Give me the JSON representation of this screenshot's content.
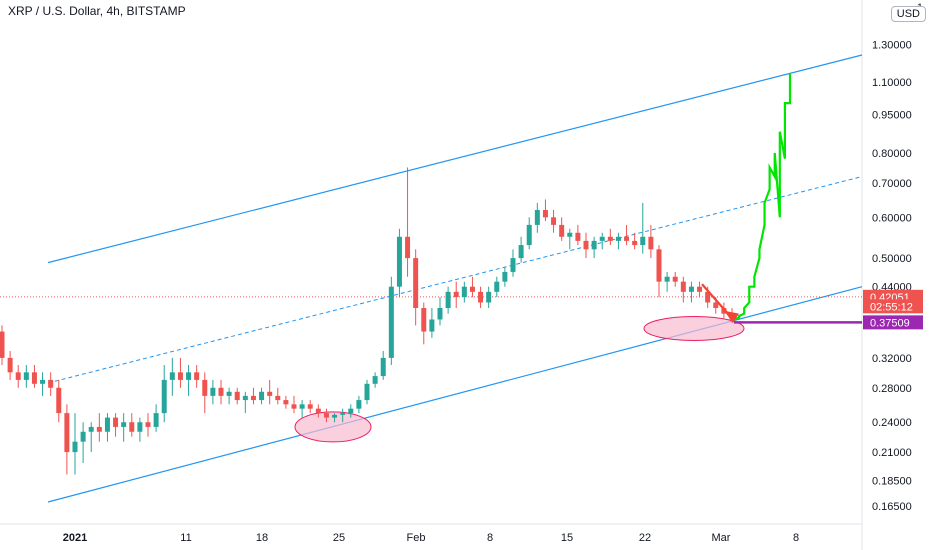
{
  "header": {
    "title": "XRP / U.S. Dollar, 4h, BITSTAMP",
    "currency_button": "USD",
    "scale_label": "1."
  },
  "chart_data": {
    "type": "candlestick",
    "title": "XRP / U.S. Dollar, 4h, BITSTAMP",
    "y_scale": "log",
    "ylim": [
      0.155,
      1.45
    ],
    "y_ticks": [
      {
        "label": "1.30000",
        "value": 1.3
      },
      {
        "label": "1.10000",
        "value": 1.1
      },
      {
        "label": "0.95000",
        "value": 0.95
      },
      {
        "label": "0.80000",
        "value": 0.8
      },
      {
        "label": "0.70000",
        "value": 0.7
      },
      {
        "label": "0.60000",
        "value": 0.6
      },
      {
        "label": "0.50000",
        "value": 0.5
      },
      {
        "label": "0.44000",
        "value": 0.44
      },
      {
        "label": "0.32000",
        "value": 0.32
      },
      {
        "label": "0.28000",
        "value": 0.28
      },
      {
        "label": "0.24000",
        "value": 0.24
      },
      {
        "label": "0.21000",
        "value": 0.21
      },
      {
        "label": "0.18500",
        "value": 0.185
      },
      {
        "label": "0.16500",
        "value": 0.165
      }
    ],
    "x_ticks": [
      "2021",
      "11",
      "18",
      "25",
      "Feb",
      "8",
      "15",
      "22",
      "Mar",
      "8"
    ],
    "price_tags": [
      {
        "label": "0.42051",
        "value": 0.42051,
        "color": "#ef5350"
      },
      {
        "label": "02:55:12",
        "value": 0.403,
        "color": "#ef5350"
      },
      {
        "label": "0.37509",
        "value": 0.37509,
        "color": "#9c27b0"
      }
    ],
    "current_price_line": 0.42051,
    "support_level": 0.37509,
    "channel": {
      "upper": {
        "start_value": 0.49,
        "end_value": 1.24
      },
      "middle": {
        "start_value": 0.286,
        "end_value": 0.72
      },
      "lower": {
        "start_value": 0.168,
        "end_value": 0.44
      }
    },
    "colors": {
      "up": "#26a69a",
      "down": "#ef5350",
      "channel": "#2196f3",
      "projection": "#00e600",
      "support": "#9c27b0",
      "highlight_fill": "#f8bbd0",
      "highlight_stroke": "#e91e63",
      "arrow": "#f44336"
    },
    "candles": [
      [
        0.36,
        0.37,
        0.31,
        0.32
      ],
      [
        0.32,
        0.33,
        0.29,
        0.3
      ],
      [
        0.3,
        0.31,
        0.28,
        0.29
      ],
      [
        0.29,
        0.31,
        0.28,
        0.3
      ],
      [
        0.3,
        0.31,
        0.28,
        0.285
      ],
      [
        0.285,
        0.3,
        0.27,
        0.29
      ],
      [
        0.29,
        0.3,
        0.27,
        0.28
      ],
      [
        0.28,
        0.29,
        0.24,
        0.25
      ],
      [
        0.25,
        0.26,
        0.19,
        0.21
      ],
      [
        0.21,
        0.25,
        0.19,
        0.22
      ],
      [
        0.22,
        0.24,
        0.2,
        0.23
      ],
      [
        0.23,
        0.24,
        0.21,
        0.235
      ],
      [
        0.235,
        0.25,
        0.22,
        0.23
      ],
      [
        0.23,
        0.25,
        0.22,
        0.245
      ],
      [
        0.245,
        0.25,
        0.225,
        0.235
      ],
      [
        0.235,
        0.25,
        0.22,
        0.24
      ],
      [
        0.24,
        0.25,
        0.225,
        0.23
      ],
      [
        0.23,
        0.245,
        0.22,
        0.24
      ],
      [
        0.24,
        0.25,
        0.225,
        0.235
      ],
      [
        0.235,
        0.26,
        0.23,
        0.25
      ],
      [
        0.25,
        0.31,
        0.24,
        0.29
      ],
      [
        0.29,
        0.32,
        0.27,
        0.3
      ],
      [
        0.3,
        0.32,
        0.28,
        0.29
      ],
      [
        0.29,
        0.31,
        0.27,
        0.3
      ],
      [
        0.3,
        0.31,
        0.28,
        0.29
      ],
      [
        0.29,
        0.3,
        0.25,
        0.27
      ],
      [
        0.27,
        0.29,
        0.26,
        0.28
      ],
      [
        0.28,
        0.29,
        0.26,
        0.27
      ],
      [
        0.27,
        0.28,
        0.26,
        0.275
      ],
      [
        0.275,
        0.28,
        0.26,
        0.265
      ],
      [
        0.265,
        0.275,
        0.25,
        0.27
      ],
      [
        0.27,
        0.28,
        0.26,
        0.265
      ],
      [
        0.265,
        0.28,
        0.26,
        0.275
      ],
      [
        0.275,
        0.29,
        0.26,
        0.27
      ],
      [
        0.27,
        0.28,
        0.26,
        0.265
      ],
      [
        0.265,
        0.27,
        0.255,
        0.26
      ],
      [
        0.26,
        0.27,
        0.25,
        0.255
      ],
      [
        0.255,
        0.265,
        0.245,
        0.26
      ],
      [
        0.26,
        0.265,
        0.25,
        0.255
      ],
      [
        0.255,
        0.26,
        0.245,
        0.25
      ],
      [
        0.25,
        0.255,
        0.24,
        0.245
      ],
      [
        0.245,
        0.25,
        0.24,
        0.248
      ],
      [
        0.248,
        0.255,
        0.24,
        0.25
      ],
      [
        0.25,
        0.26,
        0.245,
        0.255
      ],
      [
        0.255,
        0.27,
        0.25,
        0.265
      ],
      [
        0.265,
        0.29,
        0.26,
        0.285
      ],
      [
        0.285,
        0.3,
        0.28,
        0.295
      ],
      [
        0.295,
        0.33,
        0.29,
        0.32
      ],
      [
        0.32,
        0.46,
        0.31,
        0.44
      ],
      [
        0.44,
        0.57,
        0.42,
        0.55
      ],
      [
        0.55,
        0.75,
        0.46,
        0.5
      ],
      [
        0.5,
        0.52,
        0.37,
        0.4
      ],
      [
        0.4,
        0.41,
        0.34,
        0.36
      ],
      [
        0.36,
        0.4,
        0.35,
        0.38
      ],
      [
        0.38,
        0.42,
        0.37,
        0.4
      ],
      [
        0.4,
        0.44,
        0.39,
        0.43
      ],
      [
        0.43,
        0.45,
        0.4,
        0.42
      ],
      [
        0.42,
        0.45,
        0.41,
        0.44
      ],
      [
        0.44,
        0.46,
        0.42,
        0.43
      ],
      [
        0.43,
        0.44,
        0.4,
        0.41
      ],
      [
        0.41,
        0.44,
        0.4,
        0.43
      ],
      [
        0.43,
        0.46,
        0.42,
        0.45
      ],
      [
        0.45,
        0.48,
        0.44,
        0.47
      ],
      [
        0.47,
        0.52,
        0.46,
        0.5
      ],
      [
        0.5,
        0.55,
        0.49,
        0.53
      ],
      [
        0.53,
        0.6,
        0.52,
        0.58
      ],
      [
        0.58,
        0.64,
        0.56,
        0.62
      ],
      [
        0.62,
        0.65,
        0.59,
        0.6
      ],
      [
        0.6,
        0.62,
        0.56,
        0.58
      ],
      [
        0.58,
        0.6,
        0.54,
        0.55
      ],
      [
        0.55,
        0.57,
        0.52,
        0.56
      ],
      [
        0.56,
        0.58,
        0.53,
        0.54
      ],
      [
        0.54,
        0.56,
        0.5,
        0.52
      ],
      [
        0.52,
        0.55,
        0.5,
        0.54
      ],
      [
        0.54,
        0.56,
        0.52,
        0.55
      ],
      [
        0.55,
        0.57,
        0.53,
        0.54
      ],
      [
        0.54,
        0.56,
        0.52,
        0.55
      ],
      [
        0.55,
        0.58,
        0.53,
        0.54
      ],
      [
        0.54,
        0.56,
        0.52,
        0.53
      ],
      [
        0.53,
        0.64,
        0.51,
        0.55
      ],
      [
        0.55,
        0.58,
        0.5,
        0.52
      ],
      [
        0.52,
        0.53,
        0.42,
        0.45
      ],
      [
        0.45,
        0.47,
        0.43,
        0.46
      ],
      [
        0.46,
        0.47,
        0.44,
        0.45
      ],
      [
        0.45,
        0.46,
        0.41,
        0.43
      ],
      [
        0.43,
        0.45,
        0.41,
        0.44
      ],
      [
        0.44,
        0.45,
        0.42,
        0.43
      ],
      [
        0.43,
        0.44,
        0.4,
        0.41
      ],
      [
        0.41,
        0.42,
        0.39,
        0.4
      ],
      [
        0.4,
        0.41,
        0.38,
        0.39
      ],
      [
        0.39,
        0.4,
        0.375,
        0.38
      ]
    ],
    "projection_points": [
      [
        0.38,
        0.377
      ],
      [
        0.386,
        0.383
      ],
      [
        0.4,
        0.39
      ],
      [
        0.44,
        0.41
      ],
      [
        0.46,
        0.44
      ],
      [
        0.52,
        0.5
      ],
      [
        0.64,
        0.58
      ],
      [
        0.75,
        0.68
      ],
      [
        0.8,
        0.72
      ],
      [
        0.88,
        0.6
      ],
      [
        1.0,
        0.78
      ],
      [
        1.14,
        1.0
      ]
    ],
    "highlights": [
      {
        "center_value": 0.235,
        "rx_index": 5
      },
      {
        "center_value": 0.365,
        "rx_index": 7
      }
    ]
  }
}
